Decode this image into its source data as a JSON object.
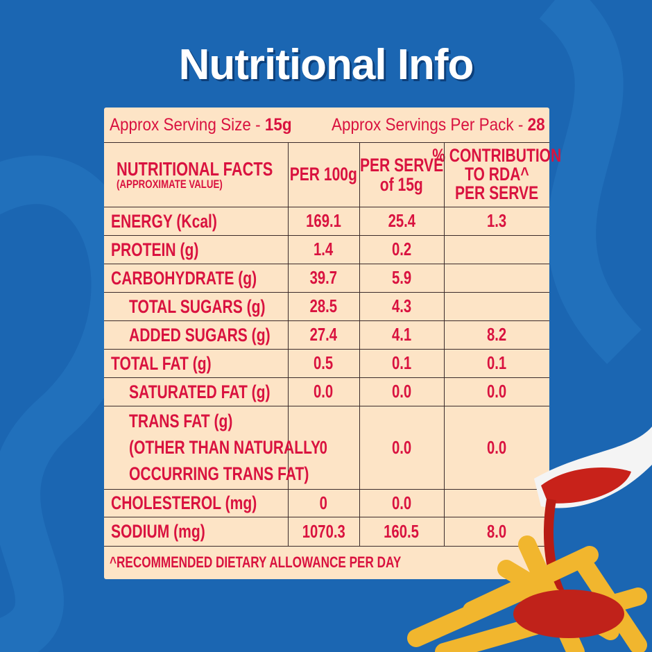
{
  "title": "Nutritional Info",
  "serving": {
    "size_label": "Approx Serving Size - ",
    "size_value": "15g",
    "per_pack_label": "Approx Servings Per Pack - ",
    "per_pack_value": "28"
  },
  "headers": {
    "facts": "NUTRITIONAL FACTS",
    "facts_sub": "(APPROXIMATE VALUE)",
    "per100": "PER 100g",
    "serve1": "PER SERVE",
    "serve2": "of 15g",
    "rda1": "% CONTRIBUTION",
    "rda2": "TO RDA^",
    "rda3": "PER SERVE"
  },
  "rows": [
    {
      "name": "ENERGY (Kcal)",
      "per100": "169.1",
      "serve": "25.4",
      "rda": "1.3"
    },
    {
      "name": "PROTEIN (g)",
      "per100": "1.4",
      "serve": "0.2",
      "rda": ""
    },
    {
      "name": "CARBOHYDRATE (g)",
      "per100": "39.7",
      "serve": "5.9",
      "rda": ""
    },
    {
      "name": "TOTAL SUGARS (g)",
      "per100": "28.5",
      "serve": "4.3",
      "rda": ""
    },
    {
      "name": "ADDED SUGARS (g)",
      "per100": "27.4",
      "serve": "4.1",
      "rda": "8.2"
    },
    {
      "name": "TOTAL FAT (g)",
      "per100": "0.5",
      "serve": "0.1",
      "rda": "0.1"
    },
    {
      "name": "SATURATED FAT (g)",
      "per100": "0.0",
      "serve": "0.0",
      "rda": "0.0"
    },
    {
      "name": "TRANS FAT (g)",
      "name2": "(OTHER THAN NATURALLY",
      "name3": "OCCURRING TRANS FAT)",
      "per100": "0",
      "serve": "0.0",
      "rda": "0.0"
    },
    {
      "name": "CHOLESTEROL (mg)",
      "per100": "0",
      "serve": "0.0",
      "rda": ""
    },
    {
      "name": "SODIUM (mg)",
      "per100": "1070.3",
      "serve": "160.5",
      "rda": "8.0"
    }
  ],
  "footnote": "^RECOMMENDED DIETARY ALLOWANCE PER DAY",
  "colors": {
    "background": "#1b66b2",
    "panel": "#fde4c6",
    "text": "#d9123f"
  }
}
